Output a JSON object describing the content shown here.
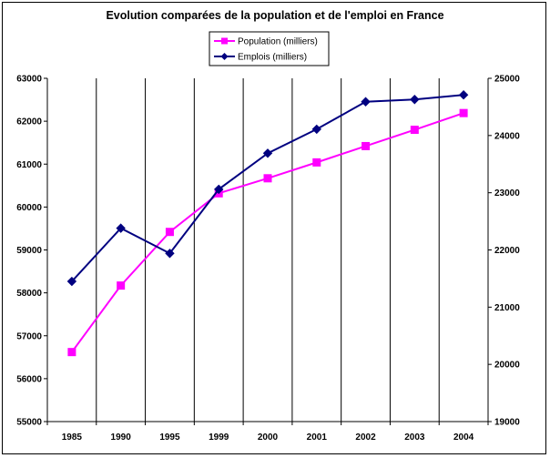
{
  "chart_data": {
    "type": "line",
    "title": "Evolution comparées de la population et de l'emploi en France",
    "categories": [
      "1985",
      "1990",
      "1995",
      "1999",
      "2000",
      "2001",
      "2002",
      "2003",
      "2004"
    ],
    "series": [
      {
        "name": "Population (milliers)",
        "axis": "left",
        "color": "#ff00ff",
        "marker": "square",
        "values": [
          56620,
          58170,
          59420,
          60320,
          60670,
          61040,
          61420,
          61800,
          62190
        ]
      },
      {
        "name": "Emplois (milliers)",
        "axis": "right",
        "color": "#000080",
        "marker": "diamond",
        "values": [
          21450,
          22380,
          21940,
          23060,
          23690,
          24110,
          24590,
          24630,
          24710
        ]
      }
    ],
    "y_left": {
      "min": 55000,
      "max": 63000,
      "step": 1000,
      "ticks": [
        "55000",
        "56000",
        "57000",
        "58000",
        "59000",
        "60000",
        "61000",
        "62000",
        "63000"
      ]
    },
    "y_right": {
      "min": 19000,
      "max": 25000,
      "step": 1000,
      "ticks": [
        "19000",
        "20000",
        "21000",
        "22000",
        "23000",
        "24000",
        "25000"
      ]
    },
    "vertical_gridlines": true,
    "legend_position": "top-center"
  }
}
